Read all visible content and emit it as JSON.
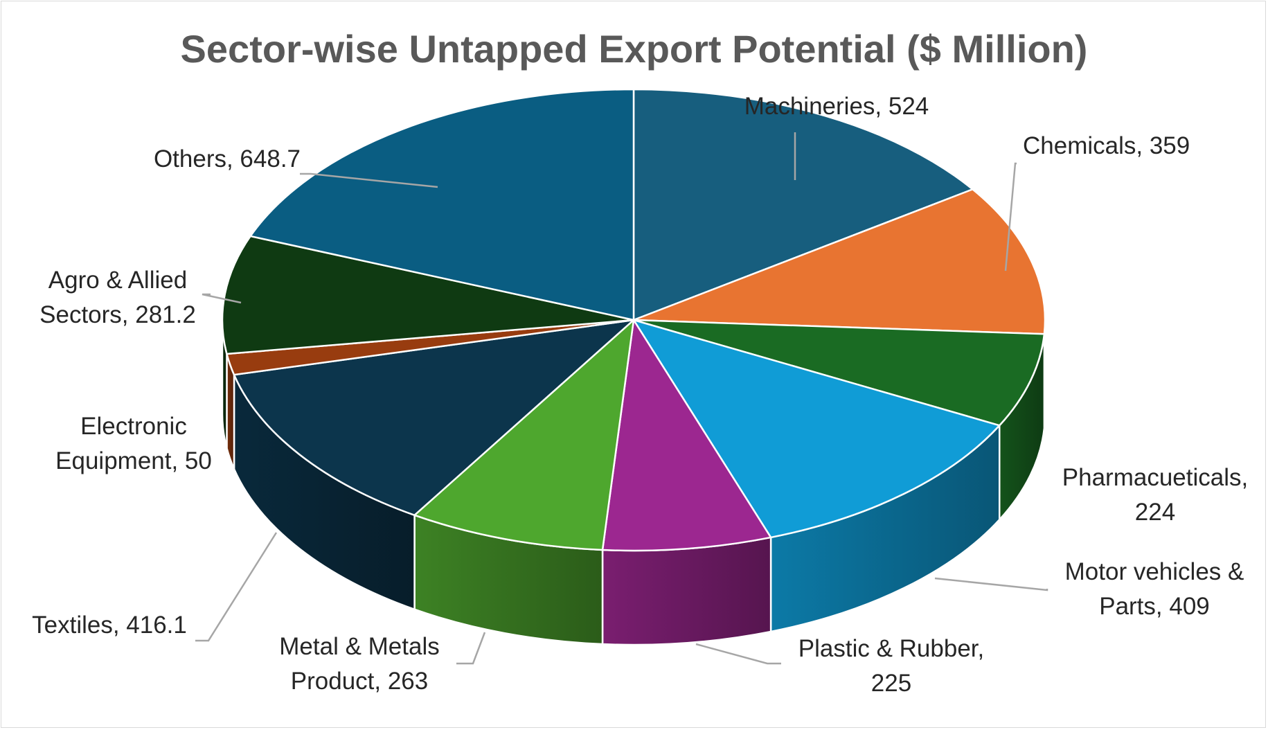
{
  "chart_data": {
    "type": "pie",
    "title": "Sector-wise Untapped Export Potential ($ Million)",
    "slices": [
      {
        "label_lines": [
          "Machineries, 524"
        ],
        "value": 524,
        "color": "#175E7E"
      },
      {
        "label_lines": [
          "Chemicals, 359"
        ],
        "value": 359,
        "color": "#E87431"
      },
      {
        "label_lines": [
          "Pharmacueticals,",
          "224"
        ],
        "value": 224,
        "color": "#1A6B23"
      },
      {
        "label_lines": [
          "Motor vehicles &",
          "Parts, 409"
        ],
        "value": 409,
        "color": "#109CD6"
      },
      {
        "label_lines": [
          "Plastic & Rubber,",
          "225"
        ],
        "value": 225,
        "color": "#9C2790"
      },
      {
        "label_lines": [
          "Metal & Metals",
          "Product, 263"
        ],
        "value": 263,
        "color": "#4EA72E"
      },
      {
        "label_lines": [
          "Textiles, 416.1"
        ],
        "value": 416.1,
        "color": "#0C354C"
      },
      {
        "label_lines": [
          "Electronic",
          "Equipment, 50"
        ],
        "value": 50,
        "color": "#983C0F"
      },
      {
        "label_lines": [
          "Agro & Allied",
          "Sectors, 281.2"
        ],
        "value": 281.2,
        "color": "#0F3A12"
      },
      {
        "label_lines": [
          "Others, 648.7"
        ],
        "value": 648.7,
        "color": "#0A5D82"
      }
    ],
    "legend": "none",
    "data_labels": "outside-with-leader-lines"
  }
}
